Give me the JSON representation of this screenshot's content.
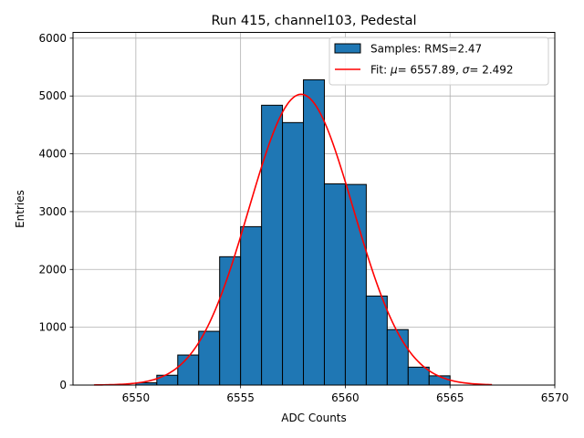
{
  "chart_data": {
    "type": "bar",
    "title": "Run 415, channel103, Pedestal",
    "xlabel": "ADC Counts",
    "ylabel": "Entries",
    "xlim": [
      6547,
      6570
    ],
    "ylim": [
      0,
      6100
    ],
    "xticks": [
      6550,
      6555,
      6560,
      6565,
      6570
    ],
    "yticks": [
      0,
      1000,
      2000,
      3000,
      4000,
      5000,
      6000
    ],
    "grid": true,
    "legend_position": "top-right",
    "histogram": {
      "name": "Samples: RMS=2.47",
      "bin_edges": [
        6550,
        6551,
        6552,
        6553,
        6554,
        6555,
        6556,
        6557,
        6558,
        6559,
        6560,
        6561,
        6562,
        6563,
        6564,
        6565
      ],
      "counts": [
        40,
        170,
        520,
        930,
        2220,
        2740,
        4840,
        4540,
        5280,
        3480,
        3470,
        1540,
        960,
        310,
        160
      ],
      "color": "#1f77b4",
      "edge_color": "#000000"
    },
    "fit": {
      "legend_prefix": "Fit: ",
      "mu_symbol": "μ",
      "mu_value": "= 6557.89",
      "sigma_symbol": "σ",
      "sigma_value": "= 2.492",
      "mu": 6557.89,
      "sigma": 2.492,
      "amplitude": 5030,
      "x_range": [
        6548,
        6567
      ],
      "color": "#ff0000"
    }
  }
}
